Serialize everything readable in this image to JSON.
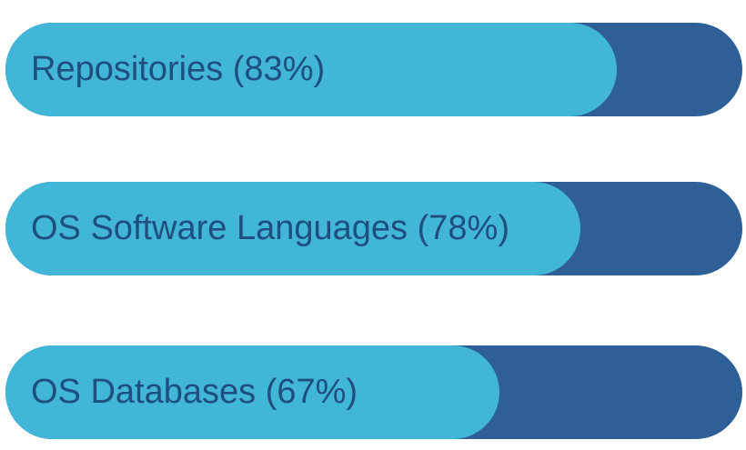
{
  "chart_data": {
    "type": "bar",
    "orientation": "horizontal",
    "categories": [
      "Repositories",
      "OS Software Languages",
      "OS Databases"
    ],
    "values": [
      83,
      78,
      67
    ],
    "labels": [
      "Repositories (83%)",
      "OS Software Languages (78%)",
      "OS Databases (67%)"
    ],
    "unit": "%",
    "xlim": [
      0,
      100
    ],
    "grid": false,
    "legend": "none"
  },
  "colors": {
    "track": "#2f5f97",
    "fill": "#41b6d7",
    "label_text": "#1f4f7f"
  }
}
